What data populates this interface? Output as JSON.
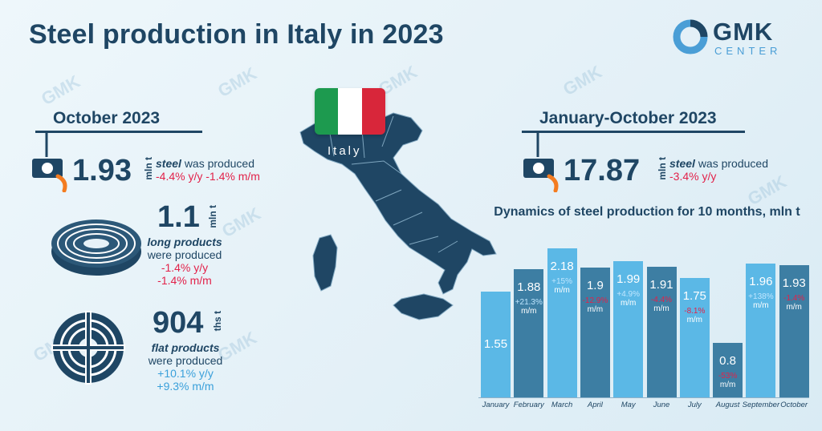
{
  "title": "Steel production in Italy in 2023",
  "logo": {
    "name": "GMK",
    "sub": "CENTER"
  },
  "watermark": "GMK",
  "country_label": "Italy",
  "colors": {
    "dark": "#1f4664",
    "light_bar": "#5bb8e6",
    "dark_bar": "#3d7ea3",
    "negative": "#e2224a",
    "positive": "#3aa0da"
  },
  "october": {
    "heading": "October 2023",
    "steel": {
      "value": "1.93",
      "unit": "mln t",
      "label": "steel",
      "text": "was produced",
      "yy": "-4.4% y/y",
      "mm": "-1.4% m/m"
    },
    "long": {
      "value": "1.1",
      "unit": "mln t",
      "label": "long products",
      "text": "were produced",
      "yy": "-1.4% y/y",
      "mm": "-1.4% m/m"
    },
    "flat": {
      "value": "904",
      "unit": "ths t",
      "label": "flat products",
      "text": "were produced",
      "yy": "+10.1% y/y",
      "mm": "+9.3% m/m"
    }
  },
  "ytd": {
    "heading": "January-October 2023",
    "steel": {
      "value": "17.87",
      "unit": "mln t",
      "label": "steel",
      "text": "was produced",
      "yy": "-3.4% y/y"
    }
  },
  "chart_data": {
    "type": "bar",
    "title": "Dynamics of steel production for 10 months, mln t",
    "categories": [
      "January",
      "February",
      "March",
      "April",
      "May",
      "June",
      "July",
      "August",
      "September",
      "October"
    ],
    "values": [
      1.55,
      1.88,
      2.18,
      1.9,
      1.99,
      1.91,
      1.75,
      0.8,
      1.96,
      1.93
    ],
    "value_labels": [
      "1.55",
      "1.88",
      "2.18",
      "1.9",
      "1.99",
      "1.91",
      "1.75",
      "0.8",
      "1.96",
      "1.93"
    ],
    "mm_change": [
      "",
      "+21.3%",
      "+15%",
      "-12.9%",
      "+4.9%",
      "-4.4%",
      "-8.1%",
      "-53%",
      "+138%",
      "-1.4%"
    ],
    "mm_unit": "m/m",
    "ylim": [
      0,
      2.4
    ]
  }
}
